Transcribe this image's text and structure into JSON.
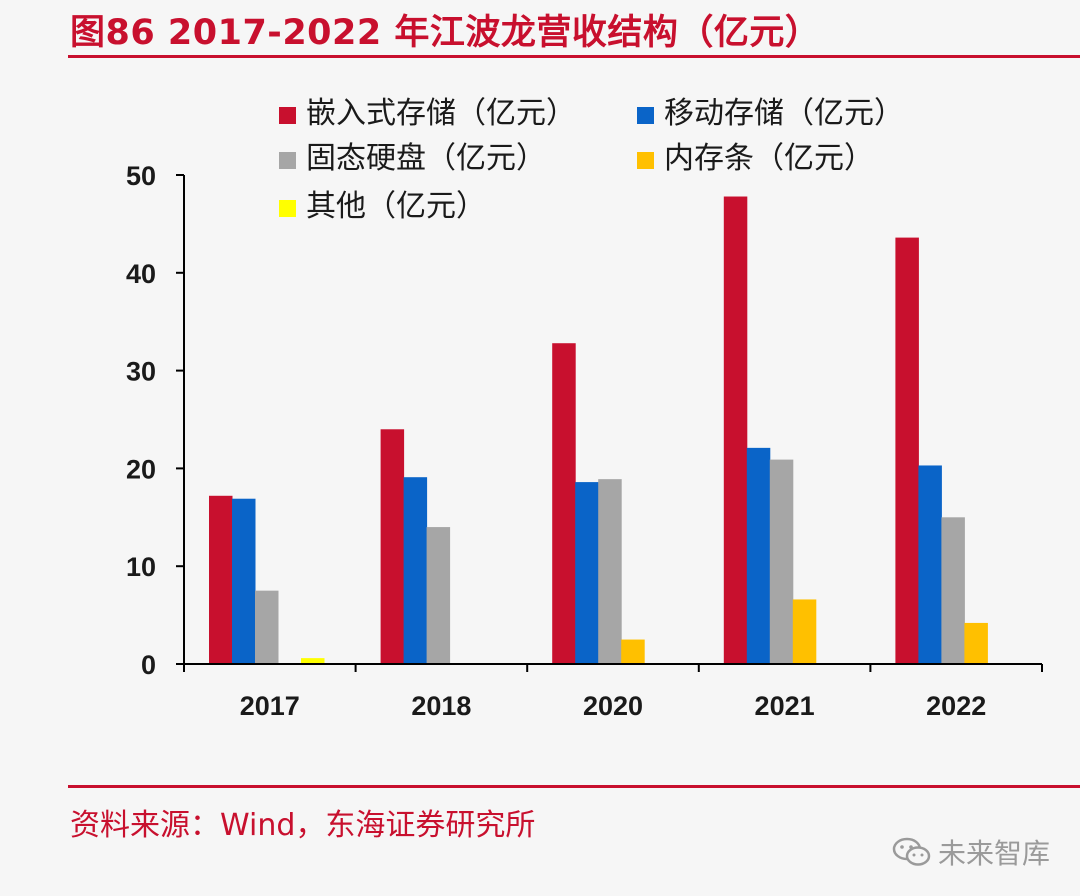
{
  "header": {
    "title": "图86  2017-2022 年江波龙营收结构（亿元）"
  },
  "footer": {
    "source": "资料来源：Wind，东海证券研究所"
  },
  "watermark": {
    "text": "未来智库",
    "icon": "wechat-icon"
  },
  "chart_data": {
    "type": "bar",
    "categories": [
      "2017",
      "2018",
      "2020",
      "2021",
      "2022"
    ],
    "series": [
      {
        "name": "嵌入式存储（亿元）",
        "color": "#c8102e",
        "values": [
          17.2,
          24.0,
          32.8,
          47.8,
          43.6
        ]
      },
      {
        "name": "移动存储（亿元）",
        "color": "#0a64c8",
        "values": [
          16.9,
          19.1,
          18.6,
          22.1,
          20.3
        ]
      },
      {
        "name": "固态硬盘（亿元）",
        "color": "#a6a6a6",
        "values": [
          7.5,
          14.0,
          18.9,
          20.9,
          15.0
        ]
      },
      {
        "name": "内存条（亿元）",
        "color": "#ffc000",
        "values": [
          0.0,
          0.0,
          2.5,
          6.6,
          4.2
        ]
      },
      {
        "name": "其他（亿元）",
        "color": "#ffff00",
        "values": [
          0.6,
          0.0,
          0.0,
          0.0,
          0.0
        ]
      }
    ],
    "yticks": [
      0,
      10,
      20,
      30,
      40,
      50
    ],
    "ylim": [
      0,
      50
    ],
    "xlabel": "",
    "ylabel": "",
    "grid": false,
    "legend_position": "top"
  }
}
